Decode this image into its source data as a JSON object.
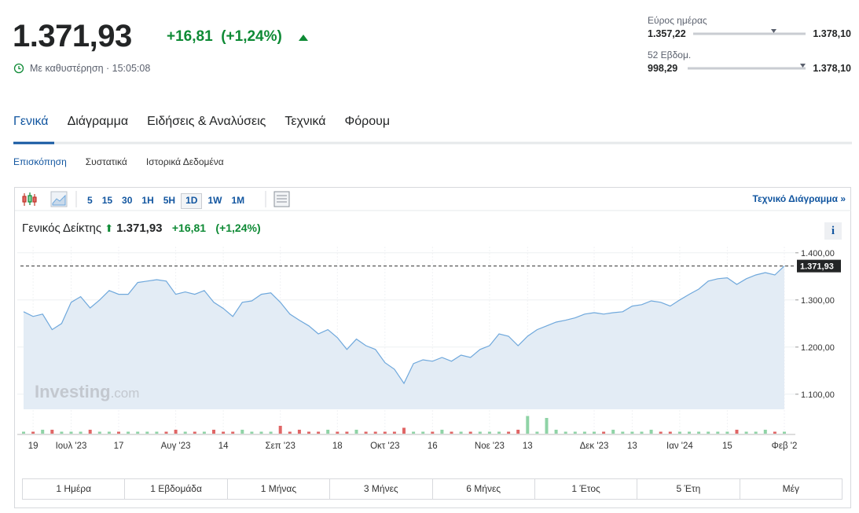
{
  "header": {
    "price": "1.371,93",
    "change": "+16,81",
    "change_percent": "(+1,24%)",
    "status": "Με καθυστέρηση · 15:05:08",
    "day_range": {
      "label": "Εύρος ημέρας",
      "low": "1.357,22",
      "high": "1.378,10"
    },
    "week52_range": {
      "label": "52 Εβδομ.",
      "low": "998,29",
      "high": "1.378,10"
    }
  },
  "tabs": [
    "Γενικά",
    "Διάγραμμα",
    "Ειδήσεις & Αναλύσεις",
    "Τεχνικά",
    "Φόρουμ"
  ],
  "subtabs": [
    "Επισκόπηση",
    "Συστατικά",
    "Ιστορικά Δεδομένα"
  ],
  "toolbar": {
    "intervals": [
      "5",
      "15",
      "30",
      "1H",
      "5H",
      "1D",
      "1W",
      "1M"
    ],
    "link": "Τεχνικό Διάγραμμα »"
  },
  "chart_header": {
    "name": "Γενικός Δείκτης",
    "price": "1.371,93",
    "change": "+16,81",
    "change_percent": "(+1,24%)",
    "info": "i"
  },
  "watermark": {
    "brand": "Investing",
    "suffix": ".com"
  },
  "chart_data": {
    "type": "area",
    "color": "#6fa8dc",
    "fill": "#e3ecf5",
    "categories": [
      null,
      "19",
      null,
      null,
      null,
      "Ιουλ '23",
      null,
      null,
      null,
      null,
      "17",
      null,
      null,
      null,
      null,
      null,
      "Αυγ '23",
      null,
      null,
      null,
      null,
      "14",
      null,
      null,
      null,
      null,
      null,
      "Σεπ '23",
      null,
      null,
      null,
      null,
      null,
      "18",
      null,
      null,
      null,
      null,
      "Οκτ '23",
      null,
      null,
      null,
      null,
      "16",
      null,
      null,
      null,
      null,
      null,
      "Νοε '23",
      null,
      null,
      null,
      "13",
      null,
      null,
      null,
      null,
      null,
      null,
      "Δεκ '23",
      null,
      null,
      null,
      "13",
      null,
      null,
      null,
      null,
      "Ιαν '24",
      null,
      null,
      null,
      null,
      "15",
      null,
      null,
      null,
      null,
      null,
      "Φεβ '2"
    ],
    "values": [
      1275,
      1265,
      1270,
      1237,
      1250,
      1295,
      1307,
      1283,
      1300,
      1320,
      1312,
      1312,
      1337,
      1340,
      1343,
      1340,
      1312,
      1317,
      1312,
      1320,
      1295,
      1282,
      1265,
      1295,
      1298,
      1312,
      1315,
      1295,
      1270,
      1257,
      1245,
      1228,
      1237,
      1220,
      1195,
      1217,
      1203,
      1195,
      1167,
      1153,
      1123,
      1165,
      1173,
      1170,
      1178,
      1170,
      1183,
      1178,
      1195,
      1203,
      1228,
      1223,
      1203,
      1223,
      1237,
      1245,
      1253,
      1257,
      1262,
      1270,
      1273,
      1270,
      1273,
      1275,
      1287,
      1290,
      1298,
      1295,
      1287,
      1300,
      1312,
      1323,
      1340,
      1345,
      1347,
      1333,
      1345,
      1353,
      1358,
      1353,
      1371.93
    ],
    "volume": [
      1,
      1,
      2,
      2,
      1,
      1,
      1,
      2,
      1,
      1,
      1,
      1,
      1,
      1,
      1,
      1,
      2,
      1,
      1,
      1,
      2,
      1,
      1,
      2,
      1,
      1,
      1,
      4,
      1,
      2,
      1,
      1,
      2,
      1,
      1,
      2,
      1,
      1,
      1,
      1,
      3,
      1,
      1,
      1,
      2,
      1,
      1,
      1,
      1,
      1,
      1,
      1,
      2,
      9,
      1,
      8,
      2,
      1,
      1,
      1,
      1,
      1,
      2,
      1,
      1,
      1,
      2,
      1,
      1,
      1,
      1,
      1,
      1,
      1,
      1,
      2,
      1,
      1,
      2,
      1,
      1
    ],
    "volume_lim": [
      0,
      10
    ],
    "up_color": "#8fd3a6",
    "down_color": "#e06666",
    "ylim": [
      1068,
      1413
    ],
    "yticks": [
      {
        "value": 1100,
        "label": "1.100,00"
      },
      {
        "value": 1200,
        "label": "1.200,00"
      },
      {
        "value": 1300,
        "label": "1.300,00"
      },
      {
        "value": 1400,
        "label": "1.400,00"
      }
    ],
    "last_label": "1.371,93",
    "grid": true
  },
  "ranges": [
    "1 Ημέρα",
    "1 Εβδομάδα",
    "1 Μήνας",
    "3 Μήνες",
    "6 Μήνες",
    "1 Έτος",
    "5 Έτη",
    "Μέγ"
  ]
}
